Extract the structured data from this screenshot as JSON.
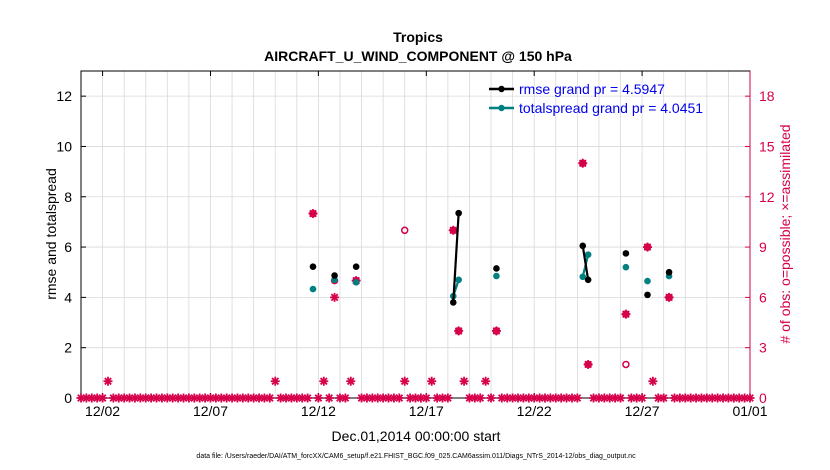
{
  "chart_data": {
    "type": "scatter",
    "title": "Tropics",
    "subtitle": "AIRCRAFT_U_WIND_COMPONENT @ 150 hPa",
    "xlabel": "Dec.01,2014 00:00:00 start",
    "ylabel": "rmse and totalspread",
    "y2label": "# of obs: o=possible; ×=assimilated",
    "footer": "data file: /Users/raeder/DAI/ATM_forcXX/CAM6_setup/f.e21.FHIST_BGC.f09_025.CAM6assim.011/Diags_NTrS_2014-12/obs_diag_output.nc",
    "xlim": [
      1,
      32
    ],
    "ylim": [
      0,
      13
    ],
    "y2lim": [
      0,
      19.5
    ],
    "x_ticks": [
      {
        "x": 2,
        "label": "12/02"
      },
      {
        "x": 7,
        "label": "12/07"
      },
      {
        "x": 12,
        "label": "12/12"
      },
      {
        "x": 17,
        "label": "12/17"
      },
      {
        "x": 22,
        "label": "12/22"
      },
      {
        "x": 27,
        "label": "12/27"
      },
      {
        "x": 32,
        "label": "01/01"
      }
    ],
    "y_ticks": [
      0,
      2,
      4,
      6,
      8,
      10,
      12
    ],
    "y2_ticks": [
      0,
      3,
      6,
      9,
      12,
      15,
      18
    ],
    "legend": [
      {
        "label": "rmse grand pr = 4.5947",
        "color": "#000000"
      },
      {
        "label": "totalspread grand pr = 4.0451",
        "color": "#008080"
      }
    ],
    "colors": {
      "rmse": "#000000",
      "spread": "#008080",
      "obs": "#d6004b",
      "grid": "#d9d9d9"
    },
    "rmse_segments": [
      [
        [
          11.75,
          5.22
        ]
      ],
      [
        [
          12.75,
          4.87
        ]
      ],
      [
        [
          13.75,
          5.22
        ]
      ],
      [
        [
          18.25,
          3.8
        ],
        [
          18.5,
          7.35
        ]
      ],
      [
        [
          20.25,
          5.15
        ]
      ],
      [
        [
          24.25,
          6.05
        ],
        [
          24.5,
          4.7
        ]
      ],
      [
        [
          26.25,
          5.75
        ]
      ],
      [
        [
          27.25,
          4.1
        ]
      ],
      [
        [
          28.25,
          5.0
        ]
      ]
    ],
    "spread_segments": [
      [
        [
          11.75,
          4.33
        ]
      ],
      [
        [
          12.75,
          4.7
        ]
      ],
      [
        [
          13.75,
          4.6
        ]
      ],
      [
        [
          18.25,
          4.05
        ],
        [
          18.5,
          4.7
        ]
      ],
      [
        [
          20.25,
          4.85
        ]
      ],
      [
        [
          24.25,
          4.82
        ],
        [
          24.5,
          5.7
        ]
      ],
      [
        [
          26.25,
          5.2
        ]
      ],
      [
        [
          27.25,
          4.65
        ]
      ],
      [
        [
          28.25,
          4.85
        ]
      ]
    ],
    "obs_possible": [
      [
        11.75,
        11
      ],
      [
        12.75,
        7
      ],
      [
        13.75,
        7
      ],
      [
        16.0,
        10
      ],
      [
        18.25,
        10
      ],
      [
        18.5,
        4
      ],
      [
        20.25,
        4
      ],
      [
        24.25,
        14
      ],
      [
        24.5,
        2
      ],
      [
        26.25,
        2
      ],
      [
        26.25,
        5
      ],
      [
        27.25,
        9
      ],
      [
        28.25,
        6
      ]
    ],
    "obs_assimilated_nonzero": [
      [
        2.25,
        1
      ],
      [
        10.0,
        1
      ],
      [
        11.75,
        11
      ],
      [
        12.25,
        1
      ],
      [
        12.75,
        6
      ],
      [
        13.5,
        1
      ],
      [
        13.75,
        7
      ],
      [
        16.0,
        1
      ],
      [
        17.25,
        1
      ],
      [
        18.25,
        10
      ],
      [
        18.5,
        4
      ],
      [
        18.75,
        1
      ],
      [
        19.75,
        1
      ],
      [
        20.25,
        4
      ],
      [
        24.25,
        14
      ],
      [
        24.5,
        2
      ],
      [
        26.25,
        5
      ],
      [
        27.25,
        9
      ],
      [
        27.5,
        1
      ],
      [
        28.25,
        6
      ]
    ],
    "obs_assimilated_zero_range": [
      1,
      32
    ],
    "obs_assimilated_zero_step": 0.25
  }
}
